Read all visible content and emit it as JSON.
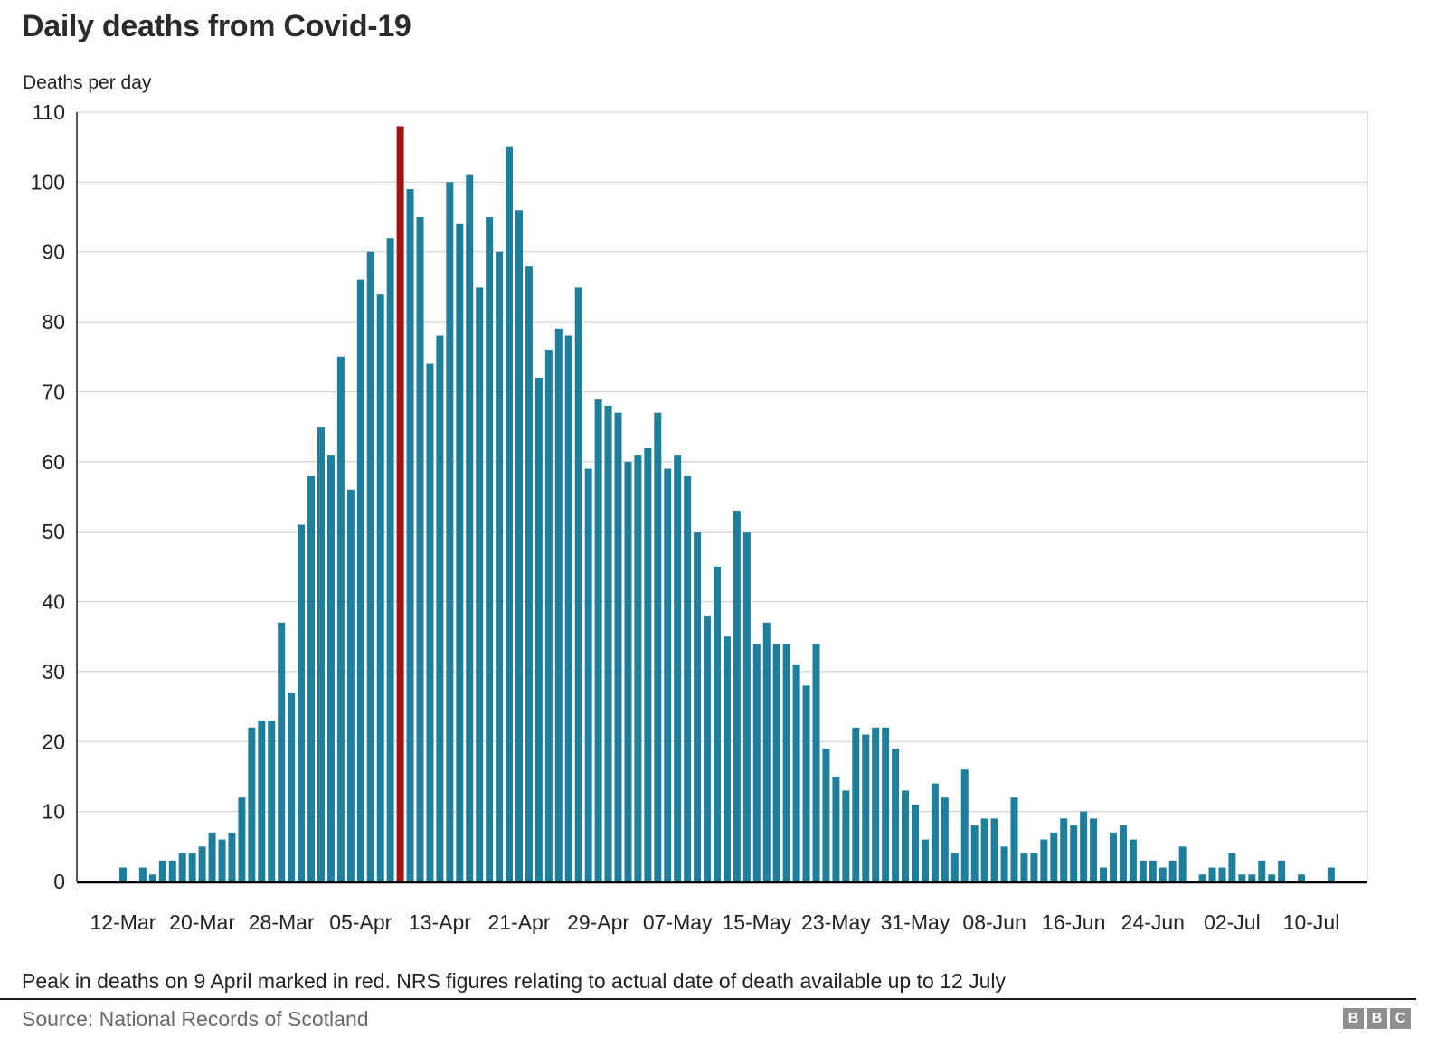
{
  "header": {
    "title": "Daily deaths from Covid-19"
  },
  "chart": {
    "y_unit": "Deaths per day"
  },
  "footer": {
    "note": "Peak in deaths on 9 April marked in red. NRS figures relating to actual date of death available up to 12 July",
    "source": "Source: National Records of Scotland",
    "logo_letters": [
      "B",
      "B",
      "C"
    ]
  },
  "chart_data": {
    "type": "bar",
    "title": "Daily deaths from Covid-19",
    "xlabel": "",
    "ylabel": "Deaths per day",
    "ylim": [
      0,
      110
    ],
    "y_tick_step": 10,
    "grid": true,
    "legend": "none",
    "bar_color": "#1E7F9D",
    "axis_color": "#000000",
    "grid_color": "#D4D4D4",
    "highlight": {
      "index": 28,
      "category": "09-Apr",
      "value": 108,
      "color": "#A31312",
      "meaning": "Peak in deaths on 9 April marked in red"
    },
    "x_tick_every": 8,
    "x_tick_labels": [
      "12-Mar",
      "20-Mar",
      "28-Mar",
      "05-Apr",
      "13-Apr",
      "21-Apr",
      "29-Apr",
      "07-May",
      "15-May",
      "23-May",
      "31-May",
      "08-Jun",
      "16-Jun",
      "24-Jun",
      "02-Jul",
      "10-Jul"
    ],
    "categories": [
      "12-Mar",
      "13-Mar",
      "14-Mar",
      "15-Mar",
      "16-Mar",
      "17-Mar",
      "18-Mar",
      "19-Mar",
      "20-Mar",
      "21-Mar",
      "22-Mar",
      "23-Mar",
      "24-Mar",
      "25-Mar",
      "26-Mar",
      "27-Mar",
      "28-Mar",
      "29-Mar",
      "30-Mar",
      "31-Mar",
      "01-Apr",
      "02-Apr",
      "03-Apr",
      "04-Apr",
      "05-Apr",
      "06-Apr",
      "07-Apr",
      "08-Apr",
      "09-Apr",
      "10-Apr",
      "11-Apr",
      "12-Apr",
      "13-Apr",
      "14-Apr",
      "15-Apr",
      "16-Apr",
      "17-Apr",
      "18-Apr",
      "19-Apr",
      "20-Apr",
      "21-Apr",
      "22-Apr",
      "23-Apr",
      "24-Apr",
      "25-Apr",
      "26-Apr",
      "27-Apr",
      "28-Apr",
      "29-Apr",
      "30-Apr",
      "01-May",
      "02-May",
      "03-May",
      "04-May",
      "05-May",
      "06-May",
      "07-May",
      "08-May",
      "09-May",
      "10-May",
      "11-May",
      "12-May",
      "13-May",
      "14-May",
      "15-May",
      "16-May",
      "17-May",
      "18-May",
      "19-May",
      "20-May",
      "21-May",
      "22-May",
      "23-May",
      "24-May",
      "25-May",
      "26-May",
      "27-May",
      "28-May",
      "29-May",
      "30-May",
      "31-May",
      "01-Jun",
      "02-Jun",
      "03-Jun",
      "04-Jun",
      "05-Jun",
      "06-Jun",
      "07-Jun",
      "08-Jun",
      "09-Jun",
      "10-Jun",
      "11-Jun",
      "12-Jun",
      "13-Jun",
      "14-Jun",
      "15-Jun",
      "16-Jun",
      "17-Jun",
      "18-Jun",
      "19-Jun",
      "20-Jun",
      "21-Jun",
      "22-Jun",
      "23-Jun",
      "24-Jun",
      "25-Jun",
      "26-Jun",
      "27-Jun",
      "28-Jun",
      "29-Jun",
      "30-Jun",
      "01-Jul",
      "02-Jul",
      "03-Jul",
      "04-Jul",
      "05-Jul",
      "06-Jul",
      "07-Jul",
      "08-Jul",
      "09-Jul",
      "10-Jul",
      "11-Jul",
      "12-Jul"
    ],
    "values": [
      2,
      0,
      2,
      1,
      3,
      3,
      4,
      4,
      5,
      7,
      6,
      7,
      12,
      22,
      23,
      23,
      37,
      27,
      51,
      58,
      65,
      61,
      75,
      56,
      86,
      90,
      84,
      92,
      108,
      99,
      95,
      74,
      78,
      100,
      94,
      101,
      85,
      95,
      90,
      105,
      96,
      88,
      72,
      76,
      79,
      78,
      85,
      59,
      69,
      68,
      67,
      60,
      61,
      62,
      67,
      59,
      61,
      58,
      50,
      38,
      45,
      35,
      53,
      50,
      34,
      37,
      34,
      34,
      31,
      28,
      34,
      19,
      15,
      13,
      22,
      21,
      22,
      22,
      19,
      13,
      11,
      6,
      14,
      12,
      4,
      16,
      8,
      9,
      9,
      5,
      12,
      4,
      4,
      6,
      7,
      9,
      8,
      10,
      9,
      2,
      7,
      8,
      6,
      3,
      3,
      2,
      3,
      5,
      0,
      1,
      2,
      2,
      4,
      1,
      1,
      3,
      1,
      3,
      0,
      1,
      0,
      0,
      2
    ]
  }
}
